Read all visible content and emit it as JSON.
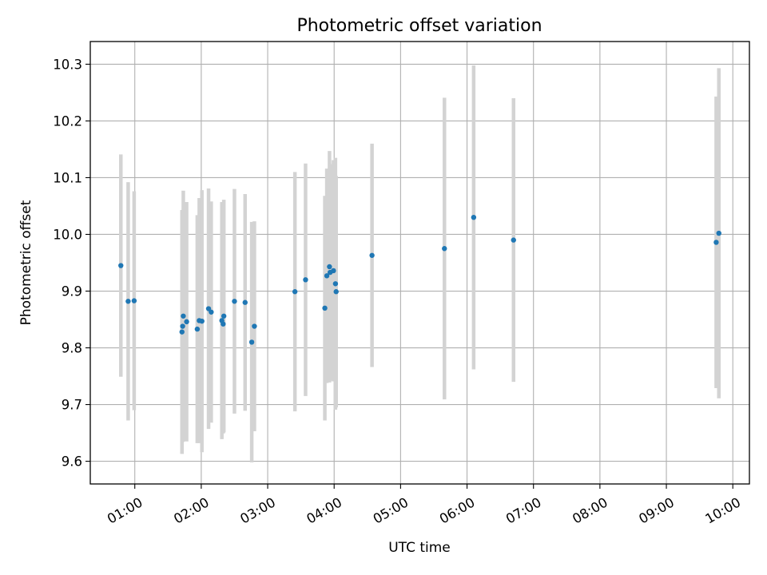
{
  "chart_data": {
    "type": "scatter",
    "title": "Photometric offset variation",
    "xlabel": "UTC time",
    "ylabel": "Photometric offset",
    "x_unit": "hours",
    "xlim": [
      0.33,
      10.25
    ],
    "ylim": [
      9.56,
      10.34
    ],
    "xticks": [
      1,
      2,
      3,
      4,
      5,
      6,
      7,
      8,
      9,
      10
    ],
    "xtick_labels": [
      "01:00",
      "02:00",
      "03:00",
      "04:00",
      "05:00",
      "06:00",
      "07:00",
      "08:00",
      "09:00",
      "10:00"
    ],
    "yticks": [
      9.6,
      9.7,
      9.8,
      9.9,
      10.0,
      10.1,
      10.2,
      10.3
    ],
    "ytick_labels": [
      "9.6",
      "9.7",
      "9.8",
      "9.9",
      "10.0",
      "10.1",
      "10.2",
      "10.3"
    ],
    "grid": true,
    "colors": {
      "points": "#1f77b4",
      "errorbars": "#d3d3d3",
      "grid": "#b0b0b0"
    },
    "points": [
      {
        "x": 0.79,
        "y": 9.945,
        "err": 0.196
      },
      {
        "x": 0.9,
        "y": 9.882,
        "err": 0.21
      },
      {
        "x": 0.99,
        "y": 9.883,
        "err": 0.193
      },
      {
        "x": 1.71,
        "y": 9.828,
        "err": 0.215
      },
      {
        "x": 1.72,
        "y": 9.838,
        "err": 0.204
      },
      {
        "x": 1.73,
        "y": 9.856,
        "err": 0.221
      },
      {
        "x": 1.78,
        "y": 9.846,
        "err": 0.211
      },
      {
        "x": 1.94,
        "y": 9.833,
        "err": 0.201
      },
      {
        "x": 1.97,
        "y": 9.848,
        "err": 0.216
      },
      {
        "x": 2.01,
        "y": 9.847,
        "err": 0.231
      },
      {
        "x": 2.11,
        "y": 9.869,
        "err": 0.212
      },
      {
        "x": 2.15,
        "y": 9.863,
        "err": 0.195
      },
      {
        "x": 2.31,
        "y": 9.848,
        "err": 0.209
      },
      {
        "x": 2.33,
        "y": 9.842,
        "err": 0.193
      },
      {
        "x": 2.34,
        "y": 9.856,
        "err": 0.205
      },
      {
        "x": 2.5,
        "y": 9.882,
        "err": 0.198
      },
      {
        "x": 2.66,
        "y": 9.88,
        "err": 0.191
      },
      {
        "x": 2.76,
        "y": 9.81,
        "err": 0.212
      },
      {
        "x": 2.8,
        "y": 9.838,
        "err": 0.185
      },
      {
        "x": 3.41,
        "y": 9.899,
        "err": 0.211
      },
      {
        "x": 3.57,
        "y": 9.92,
        "err": 0.205
      },
      {
        "x": 3.86,
        "y": 9.87,
        "err": 0.198
      },
      {
        "x": 3.89,
        "y": 9.927,
        "err": 0.189
      },
      {
        "x": 3.93,
        "y": 9.943,
        "err": 0.204
      },
      {
        "x": 3.94,
        "y": 9.933,
        "err": 0.191
      },
      {
        "x": 3.99,
        "y": 9.936,
        "err": 0.195
      },
      {
        "x": 4.02,
        "y": 9.913,
        "err": 0.222
      },
      {
        "x": 4.03,
        "y": 9.899,
        "err": 0.204
      },
      {
        "x": 4.57,
        "y": 9.963,
        "err": 0.197
      },
      {
        "x": 5.66,
        "y": 9.975,
        "err": 0.266
      },
      {
        "x": 6.1,
        "y": 10.03,
        "err": 0.268
      },
      {
        "x": 6.7,
        "y": 9.99,
        "err": 0.25
      },
      {
        "x": 9.75,
        "y": 9.986,
        "err": 0.257
      },
      {
        "x": 9.79,
        "y": 10.002,
        "err": 0.291
      }
    ]
  }
}
